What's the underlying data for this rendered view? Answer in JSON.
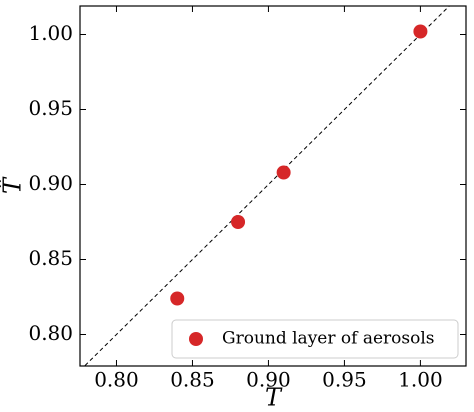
{
  "chart_data": {
    "type": "scatter",
    "x_label": "T",
    "y_label": "T̂",
    "series": [
      {
        "name": "Ground layer of aerosols",
        "color": "#d62728",
        "x": [
          0.84,
          0.88,
          0.91,
          1.0
        ],
        "values": [
          0.824,
          0.875,
          0.908,
          1.002
        ]
      }
    ],
    "xlim": [
      0.776,
      1.03
    ],
    "ylim": [
      0.779,
      1.019
    ],
    "xticks": [
      {
        "value": 0.8,
        "label": "0.80"
      },
      {
        "value": 0.85,
        "label": "0.85"
      },
      {
        "value": 0.9,
        "label": "0.90"
      },
      {
        "value": 0.95,
        "label": "0.95"
      },
      {
        "value": 1.0,
        "label": "1.00"
      }
    ],
    "yticks": [
      {
        "value": 0.8,
        "label": "0.80"
      },
      {
        "value": 0.85,
        "label": "0.85"
      },
      {
        "value": 0.9,
        "label": "0.90"
      },
      {
        "value": 0.95,
        "label": "0.95"
      },
      {
        "value": 1.0,
        "label": "1.00"
      }
    ],
    "legend": "lower right"
  }
}
